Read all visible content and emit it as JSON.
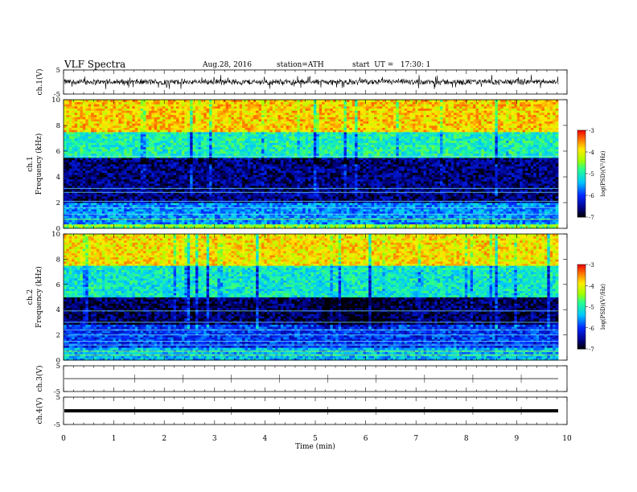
{
  "header": {
    "title": "VLF Spectra",
    "date": "Aug.28, 2016",
    "station": "station=ATH",
    "start": "start  UT =   17:30: 1"
  },
  "chart_data": [
    {
      "type": "line",
      "panel": "ch1-waveform",
      "ylabel": "ch.1(V)",
      "ylim": [
        -5,
        5
      ],
      "yticks": [
        "5",
        "-5"
      ],
      "x_range": [
        0,
        10
      ],
      "description_values": {
        "baseline": 0,
        "typical_amplitude": 1.5,
        "max_spike": 3
      }
    },
    {
      "type": "heatmap",
      "panel": "ch1-spectrogram",
      "ylabel": [
        "ch.1",
        "Frequency  (kHz)"
      ],
      "ylim": [
        0,
        10
      ],
      "yticks": [
        "0",
        "2",
        "4",
        "6",
        "8",
        "10"
      ],
      "colorbar": {
        "label": "log(PSD)(V²/Hz)",
        "ticks": [
          "-3",
          "-4",
          "-5",
          "-6",
          "-7"
        ],
        "range": [
          -7,
          -3
        ]
      },
      "band_profile": [
        {
          "freq": [
            0,
            0.3
          ],
          "level": -4.5
        },
        {
          "freq": [
            0.3,
            2.0
          ],
          "level": -5.6
        },
        {
          "freq": [
            2.0,
            5.5
          ],
          "level": -6.6
        },
        {
          "freq": [
            5.5,
            7.5
          ],
          "level": -5.0
        },
        {
          "freq": [
            7.5,
            10
          ],
          "level": -3.8
        }
      ]
    },
    {
      "type": "heatmap",
      "panel": "ch2-spectrogram",
      "ylabel": [
        "ch.2",
        "Frequency  (kHz)"
      ],
      "ylim": [
        0,
        10
      ],
      "yticks": [
        "0",
        "2",
        "4",
        "6",
        "8",
        "10"
      ],
      "colorbar": {
        "label": "log(PSD)(V²/Hz)",
        "ticks": [
          "-3",
          "-4",
          "-5",
          "-6",
          "-7"
        ],
        "range": [
          -7,
          -3
        ]
      },
      "band_profile": [
        {
          "freq": [
            0,
            1.0
          ],
          "level": -5.4
        },
        {
          "freq": [
            1.0,
            2.8
          ],
          "level": -6.0
        },
        {
          "freq": [
            2.8,
            5.0
          ],
          "level": -6.7
        },
        {
          "freq": [
            5.0,
            7.5
          ],
          "level": -5.1
        },
        {
          "freq": [
            7.5,
            10
          ],
          "level": -3.9
        }
      ]
    },
    {
      "type": "line",
      "panel": "ch3-waveform",
      "ylabel": "ch.3(V)",
      "ylim": [
        -5,
        5
      ],
      "yticks": [
        "5",
        "-5"
      ],
      "values_constant": 0
    },
    {
      "type": "line",
      "panel": "ch4-waveform",
      "ylabel": "ch.4(V)",
      "ylim": [
        -5,
        5
      ],
      "yticks": [
        "5",
        "-5"
      ],
      "values_constant": 0
    }
  ],
  "x_axis": {
    "label": "Time  (min)",
    "ticks": [
      "0",
      "1",
      "2",
      "3",
      "4",
      "5",
      "6",
      "7",
      "8",
      "9",
      "10"
    ],
    "range": [
      0,
      10
    ],
    "data_end": 9.8
  }
}
